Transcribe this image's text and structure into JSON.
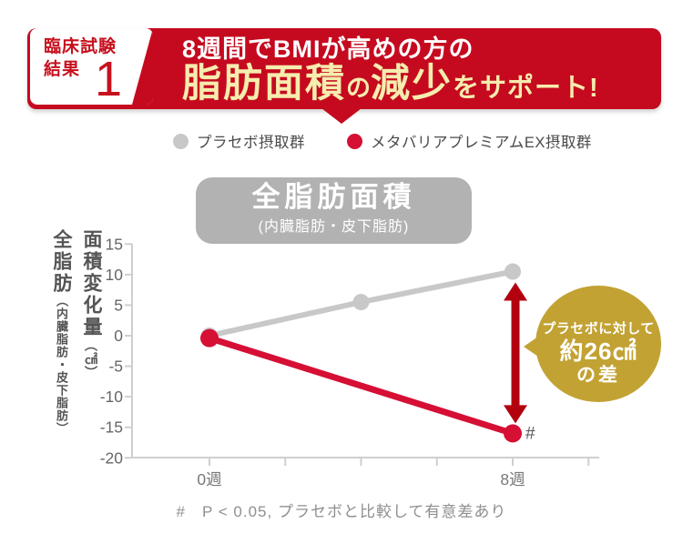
{
  "header": {
    "badge": {
      "line1": "臨床試験",
      "line2": "結果",
      "number": "1"
    },
    "title_line1": "8週間でBMIが高めの方の",
    "title_line2": {
      "fat_area": "脂肪面積",
      "no": "の",
      "reduction": "減少",
      "support": "をサポート!"
    }
  },
  "legend": {
    "items": [
      {
        "label": "プラセボ摂取群",
        "color": "#c8c8c8"
      },
      {
        "label": "メタバリアプレミアムEX摂取群",
        "color": "#d60f35"
      }
    ]
  },
  "chart_title": {
    "main": "全脂肪面積",
    "sub": "(内臓脂肪・皮下脂肪)"
  },
  "ylabel": {
    "part1_main": "全脂肪",
    "part1_paren": "（内臓脂肪・皮下脂肪）",
    "part2_main": "面積変化量",
    "part2_unit": "（㎠）"
  },
  "chart_data": {
    "type": "line",
    "title": "全脂肪面積(内臓脂肪・皮下脂肪)",
    "ylabel": "全脂肪（内臓脂肪・皮下脂肪）面積変化量（㎠）",
    "ylim": [
      -20,
      15
    ],
    "yticks": [
      15,
      10,
      5,
      0,
      -5,
      -10,
      -15,
      -20
    ],
    "xticks": [
      {
        "week": 0,
        "label": "0週"
      },
      {
        "week": 2,
        "label": ""
      },
      {
        "week": 4,
        "label": ""
      },
      {
        "week": 6,
        "label": ""
      },
      {
        "week": 8,
        "label": "8週"
      },
      {
        "week": 10,
        "label": ""
      }
    ],
    "series": [
      {
        "name": "プラセボ摂取群",
        "color": "#c8c8c8",
        "x": [
          0,
          4,
          8
        ],
        "values": [
          0,
          5.5,
          10.5
        ]
      },
      {
        "name": "メタバリアプレミアムEX摂取群",
        "color": "#d60f35",
        "x": [
          0,
          8
        ],
        "values": [
          -0.4,
          -16
        ]
      }
    ],
    "significance_marker": "#",
    "difference_annotation": "プラセボに対して約26㎠の差",
    "grid": false,
    "legend_position": "top"
  },
  "annotation_badge": {
    "line1": "プラセボに対して",
    "line2": "約26㎠",
    "line3": "の差",
    "color": "#c2a233"
  },
  "footnote": {
    "text": "#　P < 0.05, プラセボと比較して有意差あり"
  },
  "colors": {
    "banner_red": "#c50a1f",
    "box_text_red": "#c7101e",
    "headline_cream": "#f6ecae",
    "line_red": "#d60f35",
    "line_gray": "#c8c8c8",
    "arrow_red": "#b2000f",
    "bubble_gray": "#b2b2b2",
    "badge_gold": "#c2a233",
    "axis_gray": "#cfcfcf",
    "text_gray": "#555555",
    "footnote_gray": "#8f8f8f"
  }
}
